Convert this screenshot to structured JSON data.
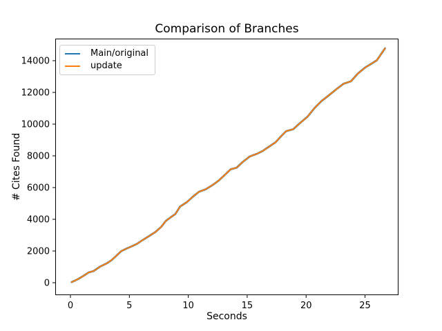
{
  "chart_data": {
    "type": "line",
    "title": "Comparison of Branches",
    "xlabel": "Seconds",
    "ylabel": "# Cites Found",
    "x": [
      0.1,
      0.4,
      0.7,
      1.1,
      1.55,
      1.95,
      2.5,
      3.1,
      3.5,
      3.9,
      4.3,
      4.75,
      5.1,
      5.65,
      6.1,
      6.5,
      7.2,
      7.7,
      8.1,
      8.5,
      8.9,
      9.3,
      9.9,
      10.4,
      10.9,
      11.5,
      12.1,
      12.6,
      13.1,
      13.6,
      14.1,
      14.6,
      15.2,
      15.8,
      16.3,
      16.9,
      17.4,
      17.9,
      18.3,
      18.9,
      19.5,
      20.1,
      20.7,
      21.3,
      21.9,
      22.65,
      23.2,
      23.8,
      24.4,
      25.0,
      25.5,
      26.0,
      26.4,
      26.7
    ],
    "series": [
      {
        "name": "Main/original",
        "color": "#1f77b4",
        "values": [
          40,
          140,
          250,
          430,
          650,
          730,
          1010,
          1230,
          1430,
          1700,
          1990,
          2150,
          2260,
          2450,
          2680,
          2860,
          3190,
          3520,
          3900,
          4120,
          4330,
          4800,
          5090,
          5430,
          5730,
          5900,
          6180,
          6450,
          6800,
          7150,
          7250,
          7600,
          7950,
          8120,
          8300,
          8600,
          8850,
          9250,
          9550,
          9680,
          10080,
          10450,
          11000,
          11450,
          11800,
          12250,
          12550,
          12700,
          13190,
          13560,
          13790,
          14020,
          14450,
          14780
        ]
      },
      {
        "name": "update",
        "color": "#ff7f0e",
        "values": [
          40,
          140,
          250,
          430,
          650,
          730,
          1010,
          1230,
          1430,
          1700,
          1990,
          2150,
          2260,
          2450,
          2680,
          2860,
          3190,
          3520,
          3900,
          4120,
          4330,
          4800,
          5090,
          5430,
          5730,
          5900,
          6180,
          6450,
          6800,
          7150,
          7250,
          7600,
          7950,
          8120,
          8300,
          8600,
          8850,
          9250,
          9550,
          9680,
          10080,
          10450,
          11000,
          11450,
          11800,
          12250,
          12550,
          12700,
          13190,
          13560,
          13790,
          14020,
          14450,
          14780
        ]
      }
    ],
    "xticks": [
      0,
      5,
      10,
      15,
      20,
      25
    ],
    "yticks": [
      0,
      2000,
      4000,
      6000,
      8000,
      10000,
      12000,
      14000
    ],
    "xlim": [
      -1.29,
      27.84
    ],
    "ylim": [
      -783,
      15391
    ],
    "grid": false,
    "legend_position": "upper left",
    "axis_color": "#000000"
  }
}
